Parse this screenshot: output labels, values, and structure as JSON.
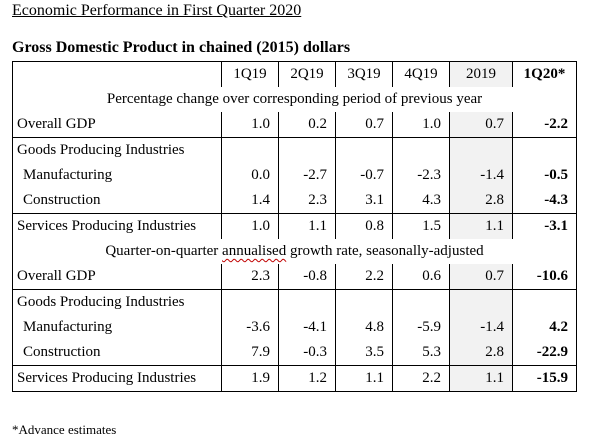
{
  "page_title": "Economic Performance in First Quarter 2020",
  "table_title": "Gross Domestic Product in chained (2015) dollars",
  "columns": [
    "1Q19",
    "2Q19",
    "3Q19",
    "4Q19",
    "2019",
    "1Q20*"
  ],
  "sections": [
    {
      "heading": "Percentage change over corresponding period of previous year",
      "rows": [
        {
          "label": "Overall GDP",
          "values": [
            "1.0",
            "0.2",
            "0.7",
            "1.0",
            "0.7",
            "-2.2"
          ]
        },
        {
          "label": "Goods Producing Industries",
          "values": [
            "",
            "",
            "",
            "",
            "",
            ""
          ]
        },
        {
          "label": "Manufacturing",
          "values": [
            "0.0",
            "-2.7",
            "-0.7",
            "-2.3",
            "-1.4",
            "-0.5"
          ]
        },
        {
          "label": "Construction",
          "values": [
            "1.4",
            "2.3",
            "3.1",
            "4.3",
            "2.8",
            "-4.3"
          ]
        },
        {
          "label": "Services Producing Industries",
          "values": [
            "1.0",
            "1.1",
            "0.8",
            "1.5",
            "1.1",
            "-3.1"
          ]
        }
      ]
    },
    {
      "heading_parts": [
        "Quarter-on-quarter ",
        "annualised",
        " growth rate, seasonally-adjusted"
      ],
      "rows": [
        {
          "label": "Overall GDP",
          "values": [
            "2.3",
            "-0.8",
            "2.2",
            "0.6",
            "0.7",
            "-10.6"
          ]
        },
        {
          "label": "Goods Producing Industries",
          "values": [
            "",
            "",
            "",
            "",
            "",
            ""
          ]
        },
        {
          "label": "Manufacturing",
          "values": [
            "-3.6",
            "-4.1",
            "4.8",
            "-5.9",
            "-1.4",
            "4.2"
          ]
        },
        {
          "label": "Construction",
          "values": [
            "7.9",
            "-0.3",
            "3.5",
            "5.3",
            "2.8",
            "-22.9"
          ]
        },
        {
          "label": "Services Producing Industries",
          "values": [
            "1.9",
            "1.2",
            "1.1",
            "2.2",
            "1.1",
            "-15.9"
          ]
        }
      ]
    }
  ],
  "footnote": "*Advance estimates",
  "colors": {
    "shade": "#f2f2f2",
    "spellcheck_underline": "#c00000"
  }
}
